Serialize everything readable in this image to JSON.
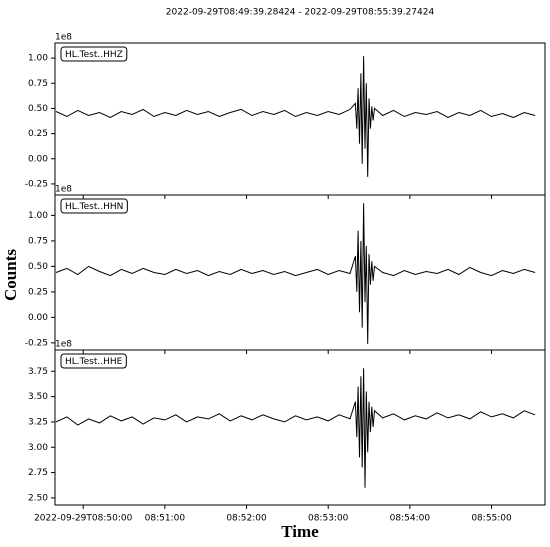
{
  "title": "2022-09-29T08:49:39.28424  -  2022-09-29T08:55:39.27424",
  "xlabel": "Time",
  "ylabel": "Counts",
  "chart_data": [
    {
      "type": "line",
      "offset_label": "1e8",
      "xlim": [
        "2022-09-29T08:49:39.28424",
        "2022-09-29T08:55:39.27424"
      ],
      "ylim": [
        -0.36,
        1.15
      ],
      "yticks": [
        -0.25,
        0.0,
        0.25,
        0.5,
        0.75,
        1.0
      ],
      "yticks_fmt": 2,
      "xticks": [
        {
          "value": "2022-09-29T08:50:00",
          "label": "2022-09-29T08:50:00"
        },
        {
          "value": "2022-09-29T08:51:00",
          "label": "08:51:00"
        },
        {
          "value": "2022-09-29T08:52:00",
          "label": "08:52:00"
        },
        {
          "value": "2022-09-29T08:53:00",
          "label": "08:53:00"
        },
        {
          "value": "2022-09-29T08:54:00",
          "label": "08:54:00"
        },
        {
          "value": "2022-09-29T08:55:00",
          "label": "08:55:00"
        }
      ],
      "x": [
        "2022-09-29T08:49:40",
        "2022-09-29T08:49:48",
        "2022-09-29T08:49:56",
        "2022-09-29T08:50:04",
        "2022-09-29T08:50:12",
        "2022-09-29T08:50:20",
        "2022-09-29T08:50:28",
        "2022-09-29T08:50:36",
        "2022-09-29T08:50:44",
        "2022-09-29T08:50:52",
        "2022-09-29T08:51:00",
        "2022-09-29T08:51:08",
        "2022-09-29T08:51:16",
        "2022-09-29T08:51:24",
        "2022-09-29T08:51:32",
        "2022-09-29T08:51:40",
        "2022-09-29T08:51:48",
        "2022-09-29T08:51:56",
        "2022-09-29T08:52:04",
        "2022-09-29T08:52:12",
        "2022-09-29T08:52:20",
        "2022-09-29T08:52:28",
        "2022-09-29T08:52:36",
        "2022-09-29T08:52:44",
        "2022-09-29T08:52:52",
        "2022-09-29T08:53:00",
        "2022-09-29T08:53:08",
        "2022-09-29T08:53:16",
        "2022-09-29T08:53:20",
        "2022-09-29T08:53:21",
        "2022-09-29T08:53:22",
        "2022-09-29T08:53:23",
        "2022-09-29T08:53:24",
        "2022-09-29T08:53:25",
        "2022-09-29T08:53:26",
        "2022-09-29T08:53:27",
        "2022-09-29T08:53:28",
        "2022-09-29T08:53:29",
        "2022-09-29T08:53:30",
        "2022-09-29T08:53:31",
        "2022-09-29T08:53:32",
        "2022-09-29T08:53:33",
        "2022-09-29T08:53:34",
        "2022-09-29T08:53:40",
        "2022-09-29T08:53:48",
        "2022-09-29T08:53:56",
        "2022-09-29T08:54:04",
        "2022-09-29T08:54:12",
        "2022-09-29T08:54:20",
        "2022-09-29T08:54:28",
        "2022-09-29T08:54:36",
        "2022-09-29T08:54:44",
        "2022-09-29T08:54:52",
        "2022-09-29T08:55:00",
        "2022-09-29T08:55:08",
        "2022-09-29T08:55:16",
        "2022-09-29T08:55:24",
        "2022-09-29T08:55:32"
      ],
      "series": [
        {
          "name": "HL.Test..HHZ",
          "color": "#000000",
          "values": [
            0.47,
            0.42,
            0.48,
            0.43,
            0.46,
            0.41,
            0.47,
            0.44,
            0.49,
            0.42,
            0.46,
            0.43,
            0.48,
            0.44,
            0.47,
            0.42,
            0.46,
            0.49,
            0.43,
            0.47,
            0.44,
            0.48,
            0.42,
            0.46,
            0.43,
            0.47,
            0.44,
            0.49,
            0.55,
            0.3,
            0.7,
            0.15,
            0.85,
            -0.05,
            1.02,
            0.1,
            0.75,
            -0.18,
            0.6,
            0.3,
            0.52,
            0.38,
            0.5,
            0.43,
            0.48,
            0.42,
            0.46,
            0.44,
            0.47,
            0.41,
            0.46,
            0.43,
            0.48,
            0.42,
            0.45,
            0.41,
            0.46,
            0.43
          ]
        }
      ]
    },
    {
      "type": "line",
      "offset_label": "1e8",
      "xlim": [
        "2022-09-29T08:49:39.28424",
        "2022-09-29T08:55:39.27424"
      ],
      "ylim": [
        -0.32,
        1.2
      ],
      "yticks": [
        -0.25,
        0.0,
        0.25,
        0.5,
        0.75,
        1.0
      ],
      "yticks_fmt": 2,
      "xticks": [
        {
          "value": "2022-09-29T08:50:00",
          "label": "2022-09-29T08:50:00"
        },
        {
          "value": "2022-09-29T08:51:00",
          "label": "08:51:00"
        },
        {
          "value": "2022-09-29T08:52:00",
          "label": "08:52:00"
        },
        {
          "value": "2022-09-29T08:53:00",
          "label": "08:53:00"
        },
        {
          "value": "2022-09-29T08:54:00",
          "label": "08:54:00"
        },
        {
          "value": "2022-09-29T08:55:00",
          "label": "08:55:00"
        }
      ],
      "x": [
        "2022-09-29T08:49:40",
        "2022-09-29T08:49:48",
        "2022-09-29T08:49:56",
        "2022-09-29T08:50:04",
        "2022-09-29T08:50:12",
        "2022-09-29T08:50:20",
        "2022-09-29T08:50:28",
        "2022-09-29T08:50:36",
        "2022-09-29T08:50:44",
        "2022-09-29T08:50:52",
        "2022-09-29T08:51:00",
        "2022-09-29T08:51:08",
        "2022-09-29T08:51:16",
        "2022-09-29T08:51:24",
        "2022-09-29T08:51:32",
        "2022-09-29T08:51:40",
        "2022-09-29T08:51:48",
        "2022-09-29T08:51:56",
        "2022-09-29T08:52:04",
        "2022-09-29T08:52:12",
        "2022-09-29T08:52:20",
        "2022-09-29T08:52:28",
        "2022-09-29T08:52:36",
        "2022-09-29T08:52:44",
        "2022-09-29T08:52:52",
        "2022-09-29T08:53:00",
        "2022-09-29T08:53:08",
        "2022-09-29T08:53:16",
        "2022-09-29T08:53:20",
        "2022-09-29T08:53:21",
        "2022-09-29T08:53:22",
        "2022-09-29T08:53:23",
        "2022-09-29T08:53:24",
        "2022-09-29T08:53:25",
        "2022-09-29T08:53:26",
        "2022-09-29T08:53:27",
        "2022-09-29T08:53:28",
        "2022-09-29T08:53:29",
        "2022-09-29T08:53:30",
        "2022-09-29T08:53:31",
        "2022-09-29T08:53:32",
        "2022-09-29T08:53:33",
        "2022-09-29T08:53:34",
        "2022-09-29T08:53:40",
        "2022-09-29T08:53:48",
        "2022-09-29T08:53:56",
        "2022-09-29T08:54:04",
        "2022-09-29T08:54:12",
        "2022-09-29T08:54:20",
        "2022-09-29T08:54:28",
        "2022-09-29T08:54:36",
        "2022-09-29T08:54:44",
        "2022-09-29T08:54:52",
        "2022-09-29T08:55:00",
        "2022-09-29T08:55:08",
        "2022-09-29T08:55:16",
        "2022-09-29T08:55:24",
        "2022-09-29T08:55:32"
      ],
      "series": [
        {
          "name": "HL.Test..HHN",
          "color": "#000000",
          "values": [
            0.44,
            0.48,
            0.42,
            0.5,
            0.45,
            0.41,
            0.47,
            0.43,
            0.48,
            0.44,
            0.42,
            0.47,
            0.43,
            0.46,
            0.41,
            0.45,
            0.42,
            0.47,
            0.43,
            0.46,
            0.42,
            0.45,
            0.41,
            0.44,
            0.47,
            0.42,
            0.46,
            0.43,
            0.6,
            0.25,
            0.85,
            0.05,
            0.75,
            -0.1,
            1.12,
            0.15,
            0.7,
            -0.26,
            0.62,
            0.32,
            0.55,
            0.36,
            0.5,
            0.44,
            0.41,
            0.46,
            0.42,
            0.45,
            0.43,
            0.47,
            0.42,
            0.49,
            0.44,
            0.41,
            0.46,
            0.43,
            0.47,
            0.44
          ]
        }
      ]
    },
    {
      "type": "line",
      "offset_label": "1e8",
      "xlim": [
        "2022-09-29T08:49:39.28424",
        "2022-09-29T08:55:39.27424"
      ],
      "ylim": [
        2.43,
        3.96
      ],
      "yticks": [
        2.5,
        2.75,
        3.0,
        3.25,
        3.5,
        3.75
      ],
      "yticks_fmt": 2,
      "xticks": [
        {
          "value": "2022-09-29T08:50:00",
          "label": "2022-09-29T08:50:00"
        },
        {
          "value": "2022-09-29T08:51:00",
          "label": "08:51:00"
        },
        {
          "value": "2022-09-29T08:52:00",
          "label": "08:52:00"
        },
        {
          "value": "2022-09-29T08:53:00",
          "label": "08:53:00"
        },
        {
          "value": "2022-09-29T08:54:00",
          "label": "08:54:00"
        },
        {
          "value": "2022-09-29T08:55:00",
          "label": "08:55:00"
        }
      ],
      "x": [
        "2022-09-29T08:49:40",
        "2022-09-29T08:49:48",
        "2022-09-29T08:49:56",
        "2022-09-29T08:50:04",
        "2022-09-29T08:50:12",
        "2022-09-29T08:50:20",
        "2022-09-29T08:50:28",
        "2022-09-29T08:50:36",
        "2022-09-29T08:50:44",
        "2022-09-29T08:50:52",
        "2022-09-29T08:51:00",
        "2022-09-29T08:51:08",
        "2022-09-29T08:51:16",
        "2022-09-29T08:51:24",
        "2022-09-29T08:51:32",
        "2022-09-29T08:51:40",
        "2022-09-29T08:51:48",
        "2022-09-29T08:51:56",
        "2022-09-29T08:52:04",
        "2022-09-29T08:52:12",
        "2022-09-29T08:52:20",
        "2022-09-29T08:52:28",
        "2022-09-29T08:52:36",
        "2022-09-29T08:52:44",
        "2022-09-29T08:52:52",
        "2022-09-29T08:53:00",
        "2022-09-29T08:53:08",
        "2022-09-29T08:53:16",
        "2022-09-29T08:53:20",
        "2022-09-29T08:53:21",
        "2022-09-29T08:53:22",
        "2022-09-29T08:53:23",
        "2022-09-29T08:53:24",
        "2022-09-29T08:53:25",
        "2022-09-29T08:53:26",
        "2022-09-29T08:53:27",
        "2022-09-29T08:53:28",
        "2022-09-29T08:53:29",
        "2022-09-29T08:53:30",
        "2022-09-29T08:53:31",
        "2022-09-29T08:53:32",
        "2022-09-29T08:53:33",
        "2022-09-29T08:53:34",
        "2022-09-29T08:53:40",
        "2022-09-29T08:53:48",
        "2022-09-29T08:53:56",
        "2022-09-29T08:54:04",
        "2022-09-29T08:54:12",
        "2022-09-29T08:54:20",
        "2022-09-29T08:54:28",
        "2022-09-29T08:54:36",
        "2022-09-29T08:54:44",
        "2022-09-29T08:54:52",
        "2022-09-29T08:55:00",
        "2022-09-29T08:55:08",
        "2022-09-29T08:55:16",
        "2022-09-29T08:55:24",
        "2022-09-29T08:55:32"
      ],
      "series": [
        {
          "name": "HL.Test..HHE",
          "color": "#000000",
          "values": [
            3.25,
            3.3,
            3.22,
            3.28,
            3.24,
            3.31,
            3.26,
            3.3,
            3.23,
            3.29,
            3.27,
            3.32,
            3.25,
            3.3,
            3.28,
            3.33,
            3.26,
            3.31,
            3.27,
            3.32,
            3.28,
            3.25,
            3.31,
            3.27,
            3.3,
            3.26,
            3.32,
            3.28,
            3.45,
            3.1,
            3.6,
            2.9,
            3.7,
            2.8,
            3.78,
            2.6,
            3.55,
            2.95,
            3.45,
            3.15,
            3.4,
            3.2,
            3.36,
            3.29,
            3.33,
            3.27,
            3.31,
            3.28,
            3.34,
            3.29,
            3.32,
            3.28,
            3.35,
            3.3,
            3.33,
            3.29,
            3.36,
            3.32
          ]
        }
      ]
    }
  ]
}
